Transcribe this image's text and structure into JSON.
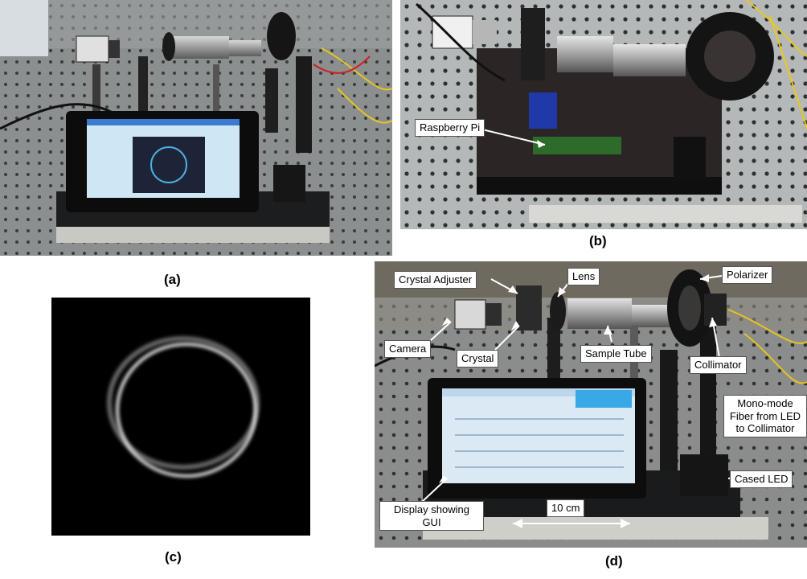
{
  "captions": {
    "a": "(a)",
    "b": "(b)",
    "c": "(c)",
    "d": "(d)"
  },
  "panel_b": {
    "raspberry_label": "Raspberry Pi"
  },
  "panel_d": {
    "labels": {
      "crystal_adjuster": "Crystal Adjuster",
      "lens": "Lens",
      "polarizer": "Polarizer",
      "camera": "Camera",
      "crystal": "Crystal",
      "sample_tube": "Sample Tube",
      "collimator": "Collimator",
      "fiber": "Mono-mode Fiber from LED to Collimator",
      "cased_led": "Cased LED",
      "display": "Display showing GUI"
    },
    "scale_bar": "10 cm"
  },
  "colors": {
    "background": "#ffffff",
    "label_border": "#555555",
    "arrow": "#ffffff",
    "screen_glow": "#3aa8e6"
  }
}
